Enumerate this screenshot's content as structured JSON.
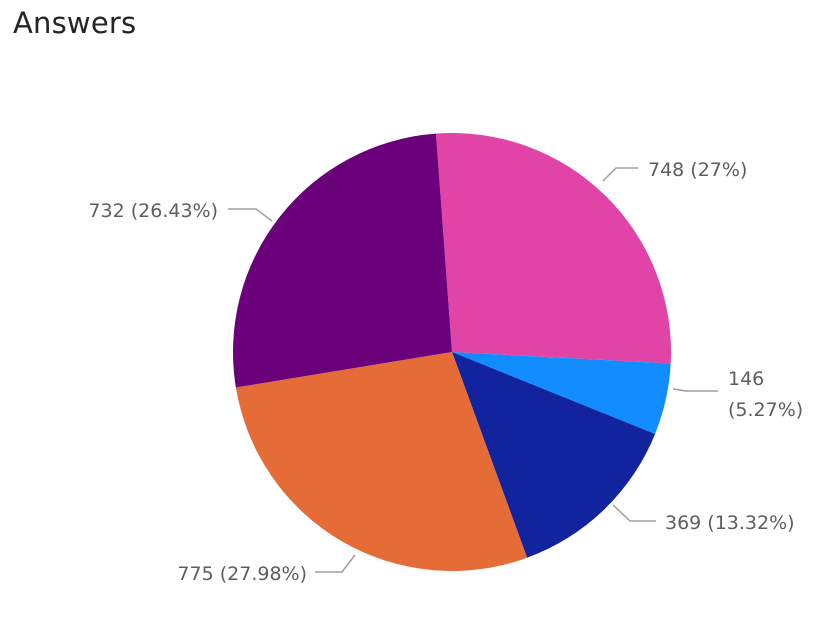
{
  "chart_data": {
    "type": "pie",
    "title": "Answers",
    "slices": [
      {
        "value": 748,
        "label": "748 (27%)",
        "color": "#e044a7"
      },
      {
        "value": 146,
        "label": "146 (5.27%)",
        "label_lines": [
          "146",
          "(5.27%)"
        ],
        "color": "#118dff"
      },
      {
        "value": 369,
        "label": "369 (13.32%)",
        "color": "#12239e"
      },
      {
        "value": 775,
        "label": "775 (27.98%)",
        "color": "#e66c37"
      },
      {
        "value": 732,
        "label": "732 (26.43%)",
        "color": "#6b007b"
      }
    ],
    "start": "12 o'clock",
    "direction": "clockwise",
    "legend": "none"
  }
}
